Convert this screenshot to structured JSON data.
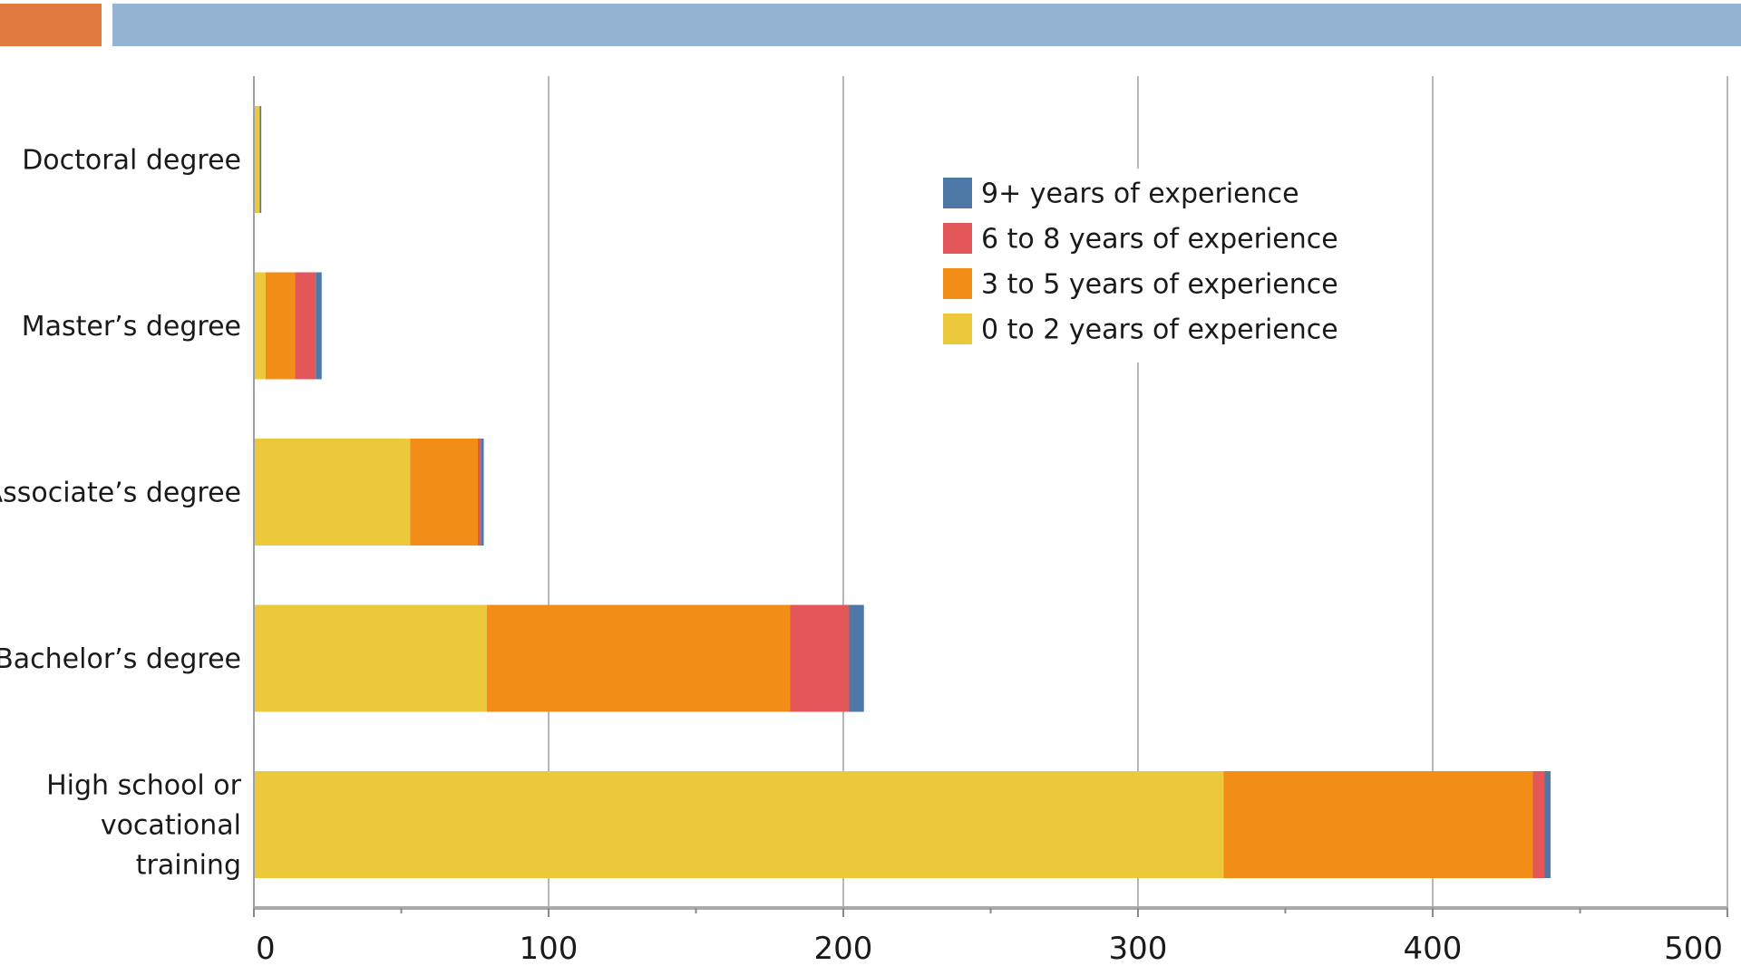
{
  "header": {
    "accent_left_color": "#E07A3E",
    "accent_right_color": "#95B4D3"
  },
  "chart_data": {
    "type": "bar",
    "orientation": "horizontal",
    "stacked": true,
    "categories": [
      "Doctoral degree",
      "Master’s degree",
      "Associate’s degree",
      "Bachelor’s degree",
      "High school or vocational training"
    ],
    "category_lines": [
      [
        "Doctoral degree"
      ],
      [
        "Master’s degree"
      ],
      [
        "Associate’s degree"
      ],
      [
        "Bachelor’s degree"
      ],
      [
        "High school or",
        "vocational",
        "training"
      ]
    ],
    "series": [
      {
        "name": "0 to 2 years of experience",
        "color": "#ECC93A",
        "values": [
          2,
          4,
          53,
          79,
          329
        ]
      },
      {
        "name": "3 to 5 years of experience",
        "color": "#F28E17",
        "values": [
          0,
          10,
          23,
          103,
          105
        ]
      },
      {
        "name": "6 to 8 years of experience",
        "color": "#E35758",
        "values": [
          0,
          7,
          1,
          20,
          4
        ]
      },
      {
        "name": "9+ years of experience",
        "color": "#4E79A7",
        "values": [
          0.5,
          2,
          1,
          5,
          2
        ]
      }
    ],
    "legend_order": [
      3,
      2,
      1,
      0
    ],
    "xlim": [
      0,
      500
    ],
    "xticks": [
      0,
      100,
      200,
      300,
      400,
      500
    ],
    "xtick_labels": [
      "0",
      "100",
      "200",
      "300",
      "400",
      "500"
    ],
    "minor_ticks": [
      50,
      150,
      250,
      350,
      450
    ],
    "grid": true,
    "legend_position": "top-right",
    "title": "",
    "xlabel": "",
    "ylabel": ""
  }
}
